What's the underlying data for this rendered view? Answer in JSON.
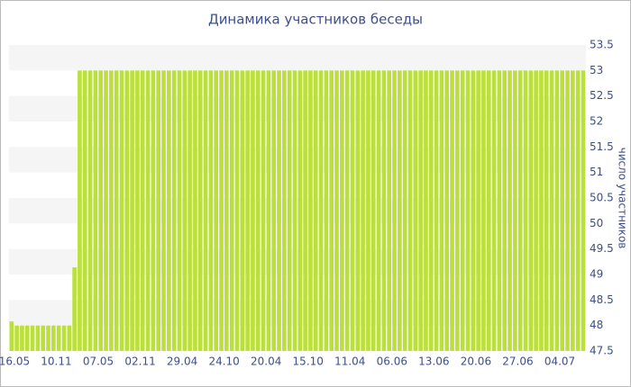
{
  "chart_data": {
    "type": "bar",
    "title": "Динамика участников беседы",
    "y_label": "число участников",
    "categories": [
      "16.05",
      null,
      null,
      null,
      null,
      null,
      null,
      null,
      "10.11",
      null,
      null,
      null,
      null,
      null,
      null,
      null,
      "07.05",
      null,
      null,
      null,
      null,
      null,
      null,
      null,
      "02.11",
      null,
      null,
      null,
      null,
      null,
      null,
      null,
      "29.04",
      null,
      null,
      null,
      null,
      null,
      null,
      null,
      "24.10",
      null,
      null,
      null,
      null,
      null,
      null,
      null,
      "20.04",
      null,
      null,
      null,
      null,
      null,
      null,
      null,
      "15.10",
      null,
      null,
      null,
      null,
      null,
      null,
      null,
      "11.04",
      null,
      null,
      null,
      null,
      null,
      null,
      null,
      "06.06",
      null,
      null,
      null,
      null,
      null,
      null,
      null,
      "13.06",
      null,
      null,
      null,
      null,
      null,
      null,
      null,
      "20.06",
      null,
      null,
      null,
      null,
      null,
      null,
      null,
      "27.06",
      null,
      null,
      null,
      null,
      null,
      null,
      null,
      "04.07",
      null,
      null,
      null,
      null,
      null
    ],
    "values": [
      48.08,
      48,
      48,
      48,
      48,
      48,
      48,
      48,
      48,
      48,
      48,
      48,
      49.14,
      53,
      53,
      53,
      53,
      53,
      53,
      53,
      53,
      53,
      53,
      53,
      53,
      53,
      53,
      53,
      53,
      53,
      53,
      53,
      53,
      53,
      53,
      53,
      53,
      53,
      53,
      53,
      53,
      53,
      53,
      53,
      53,
      53,
      53,
      53,
      53,
      53,
      53,
      53,
      53,
      53,
      53,
      53,
      53,
      53,
      53,
      53,
      53,
      53,
      53,
      53,
      53,
      53,
      53,
      53,
      53,
      53,
      53,
      53,
      53,
      53,
      53,
      53,
      53,
      53,
      53,
      53,
      53,
      53,
      53,
      53,
      53,
      53,
      53,
      53,
      53,
      53,
      53,
      53,
      53,
      53,
      53,
      53,
      53,
      53,
      53,
      53,
      53,
      53,
      53,
      53,
      53,
      53,
      53,
      53,
      53,
      53
    ],
    "color": "#bbe03c",
    "ylim": [
      47.5,
      53.5
    ],
    "yticks": [
      47.5,
      48,
      48.5,
      49,
      49.5,
      50,
      50.5,
      51,
      51.5,
      52,
      52.5,
      53,
      53.5
    ],
    "grid": true
  }
}
